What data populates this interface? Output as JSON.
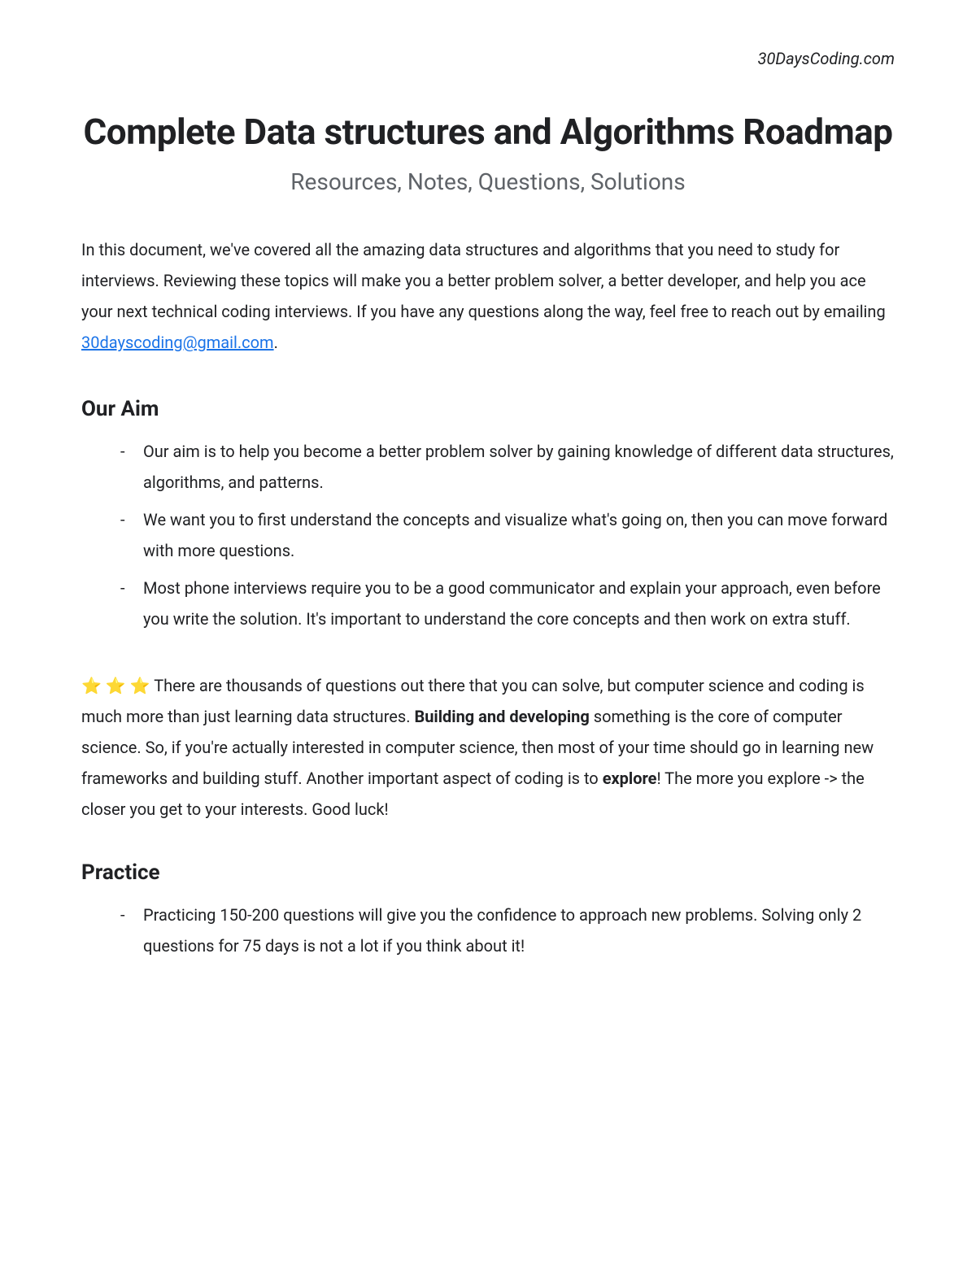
{
  "header": {
    "brand": "30DaysCoding.com"
  },
  "title": "Complete Data structures and Algorithms Roadmap",
  "subtitle": "Resources, Notes, Questions, Solutions",
  "intro": {
    "text_before_link": "In this document, we've covered all the amazing data structures and algorithms that you need to study for interviews. Reviewing these topics will make you a better problem solver, a better developer, and help you ace your next technical coding interviews. If you have any questions along the way, feel free to reach out by emailing ",
    "email": "30dayscoding@gmail.com",
    "text_after_link": "."
  },
  "sections": {
    "our_aim": {
      "heading": "Our Aim",
      "bullets": [
        "Our aim is to help you become a better problem solver by gaining knowledge of different data structures, algorithms, and patterns.",
        "We want you to first understand the concepts and visualize what's going on, then you can move forward with more questions.",
        "Most phone interviews require you to be a good communicator and explain your approach, even before you write the solution. It's important to understand the core concepts and then work on extra stuff."
      ]
    },
    "star_note": {
      "stars": "⭐ ⭐ ⭐",
      "part1": " There are thousands of questions out there that you can solve, but computer science and coding is much more than just learning data structures. ",
      "bold1": "Building and developing",
      "part2": " something is the core of computer science. So, if you're actually interested in computer science, then most of your time should go in learning new frameworks and building stuff. Another important aspect of coding is to ",
      "bold2": "explore",
      "part3": "! The more you explore -> the closer you get to your interests. Good luck!"
    },
    "practice": {
      "heading": "Practice",
      "bullets": [
        "Practicing 150-200 questions will give you the confidence to approach new problems. Solving only 2 questions for 75 days is not a lot if you think about it!"
      ]
    }
  }
}
